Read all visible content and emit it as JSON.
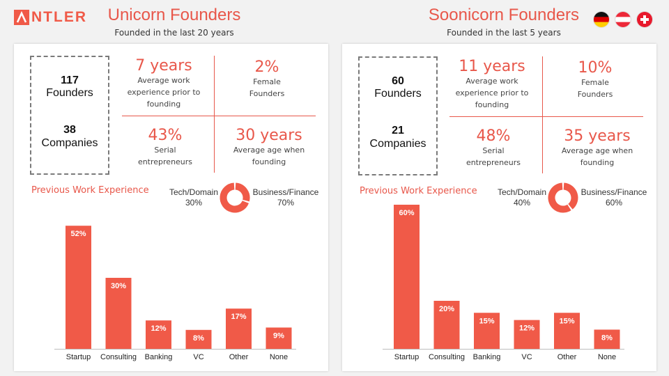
{
  "logo": {
    "text": "NTLER"
  },
  "colors": {
    "accent": "#f05a48",
    "bar": "#f05a48",
    "donut_dark": "#f05a48",
    "donut_light": "#f05a48"
  },
  "flags": [
    "germany-flag-icon",
    "austria-flag-icon",
    "switzerland-flag-icon"
  ],
  "sections": [
    {
      "title": "Unicorn Founders",
      "subtitle": "Founded in the last 20 years",
      "founders": {
        "num": "117",
        "label": "Founders"
      },
      "companies": {
        "num": "38",
        "label": "Companies"
      },
      "stats": [
        {
          "value": "7 years",
          "l1": "Average work",
          "l2": "experience prior to",
          "l3": "founding"
        },
        {
          "value": "2%",
          "l1": "Female",
          "l2": "Founders",
          "l3": ""
        },
        {
          "value": "43%",
          "l1": "Serial",
          "l2": "entrepreneurs",
          "l3": ""
        },
        {
          "value": "30 years",
          "l1": "Average age when",
          "l2": "founding",
          "l3": ""
        }
      ],
      "prev_work_label": "Previous Work  Experience",
      "donut": {
        "left_label": "Tech/Domain",
        "left_value": "30%",
        "right_label": "Business/Finance",
        "right_value": "70%"
      }
    },
    {
      "title": "Soonicorn Founders",
      "subtitle": "Founded in the last 5 years",
      "founders": {
        "num": "60",
        "label": "Founders"
      },
      "companies": {
        "num": "21",
        "label": "Companies"
      },
      "stats": [
        {
          "value": "11 years",
          "l1": "Average work",
          "l2": "experience prior to",
          "l3": "founding"
        },
        {
          "value": "10%",
          "l1": "Female",
          "l2": "Founders",
          "l3": ""
        },
        {
          "value": "48%",
          "l1": "Serial",
          "l2": "entrepreneurs",
          "l3": ""
        },
        {
          "value": "35 years",
          "l1": "Average age when",
          "l2": "founding",
          "l3": ""
        }
      ],
      "prev_work_label": "Previous Work  Experience",
      "donut": {
        "left_label": "Tech/Domain",
        "left_value": "40%",
        "right_label": "Business/Finance",
        "right_value": "60%"
      }
    }
  ],
  "chart_data": [
    {
      "type": "bar",
      "title": "Previous Work  Experience",
      "categories": [
        "Startup",
        "Consulting",
        "Banking",
        "VC",
        "Other",
        "None"
      ],
      "values": [
        52,
        30,
        12,
        8,
        17,
        9
      ],
      "value_labels": [
        "52%",
        "30%",
        "12%",
        "8%",
        "17%",
        "9%"
      ],
      "ylim": [
        0,
        60
      ]
    },
    {
      "type": "bar",
      "title": "Previous Work  Experience",
      "categories": [
        "Startup",
        "Consulting",
        "Banking",
        "VC",
        "Other",
        "None"
      ],
      "values": [
        60,
        20,
        15,
        12,
        15,
        8
      ],
      "value_labels": [
        "60%",
        "20%",
        "15%",
        "12%",
        "15%",
        "8%"
      ],
      "ylim": [
        0,
        60
      ]
    },
    {
      "type": "pie",
      "title": "Tech/Domain vs Business/Finance (Unicorn)",
      "categories": [
        "Tech/Domain",
        "Business/Finance"
      ],
      "values": [
        30,
        70
      ]
    },
    {
      "type": "pie",
      "title": "Tech/Domain vs Business/Finance (Soonicorn)",
      "categories": [
        "Tech/Domain",
        "Business/Finance"
      ],
      "values": [
        40,
        60
      ]
    }
  ]
}
